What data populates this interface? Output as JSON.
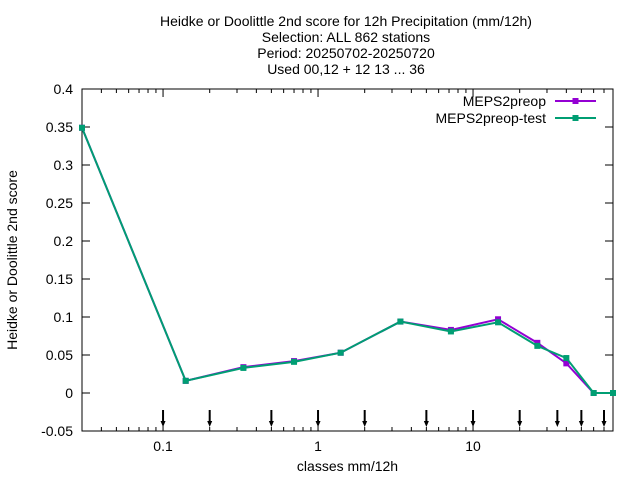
{
  "chart_data": {
    "type": "line",
    "title_lines": [
      "Heidke or Doolittle 2nd score  for 12h Precipitation (mm/12h)",
      "Selection: ALL    862 stations",
      "Period: 20250702-20250720",
      "Used 00,12 + 12 13 ... 36"
    ],
    "xlabel": "classes mm/12h",
    "ylabel": "Heidke or Doolittle 2nd score",
    "x_scale": "log",
    "xlim": [
      0.03,
      80
    ],
    "ylim": [
      -0.05,
      0.4
    ],
    "x_ticks": [
      {
        "value": 0.1,
        "label": "0.1"
      },
      {
        "value": 1,
        "label": "1"
      },
      {
        "value": 10,
        "label": "10"
      }
    ],
    "y_ticks": [
      {
        "value": -0.05,
        "label": "-0.05"
      },
      {
        "value": 0,
        "label": "0"
      },
      {
        "value": 0.05,
        "label": "0.05"
      },
      {
        "value": 0.1,
        "label": "0.1"
      },
      {
        "value": 0.15,
        "label": "0.15"
      },
      {
        "value": 0.2,
        "label": "0.2"
      },
      {
        "value": 0.25,
        "label": "0.25"
      },
      {
        "value": 0.3,
        "label": "0.3"
      },
      {
        "value": 0.35,
        "label": "0.35"
      },
      {
        "value": 0.4,
        "label": "0.4"
      }
    ],
    "threshold_arrows": [
      0.1,
      0.2,
      0.5,
      1,
      2,
      5,
      10,
      20,
      35,
      50,
      70
    ],
    "legend_position": "top-right",
    "series": [
      {
        "name": "MEPS2preop",
        "color": "#9400d3",
        "x": [
          0.03,
          0.14,
          0.33,
          0.7,
          1.4,
          3.4,
          7.2,
          14.5,
          26,
          40,
          60,
          80
        ],
        "y": [
          0.349,
          0.016,
          0.034,
          0.042,
          0.053,
          0.094,
          0.083,
          0.097,
          0.066,
          0.039,
          0.0,
          0.0
        ]
      },
      {
        "name": "MEPS2preop-test",
        "color": "#009e73",
        "x": [
          0.03,
          0.14,
          0.33,
          0.7,
          1.4,
          3.4,
          7.2,
          14.5,
          26,
          40,
          60,
          80
        ],
        "y": [
          0.349,
          0.016,
          0.033,
          0.041,
          0.053,
          0.094,
          0.081,
          0.093,
          0.062,
          0.046,
          0.0,
          0.0
        ]
      }
    ]
  }
}
